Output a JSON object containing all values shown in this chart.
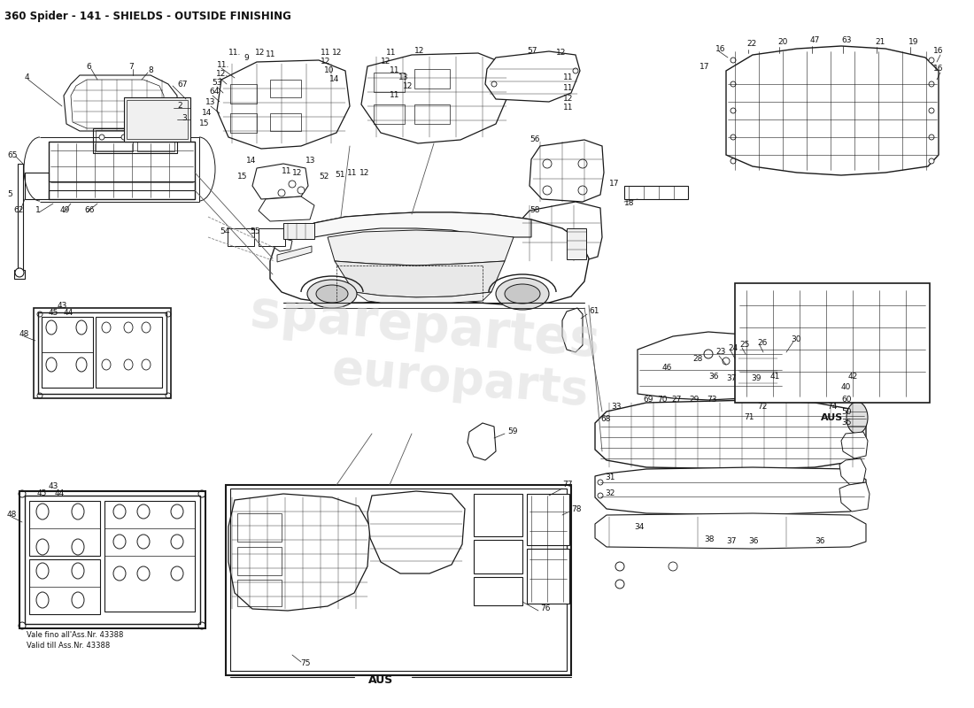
{
  "title": "360 Spider - 141 - SHIELDS - OUTSIDE FINISHING",
  "title_fontsize": 8.5,
  "background_color": "#ffffff",
  "line_color": "#1a1a1a",
  "text_color": "#111111",
  "fig_width": 11.0,
  "fig_height": 8.0,
  "dpi": 100,
  "watermark1": "sparepartes",
  "watermark2": "europarts",
  "watermark_color": "#d8d8d8"
}
